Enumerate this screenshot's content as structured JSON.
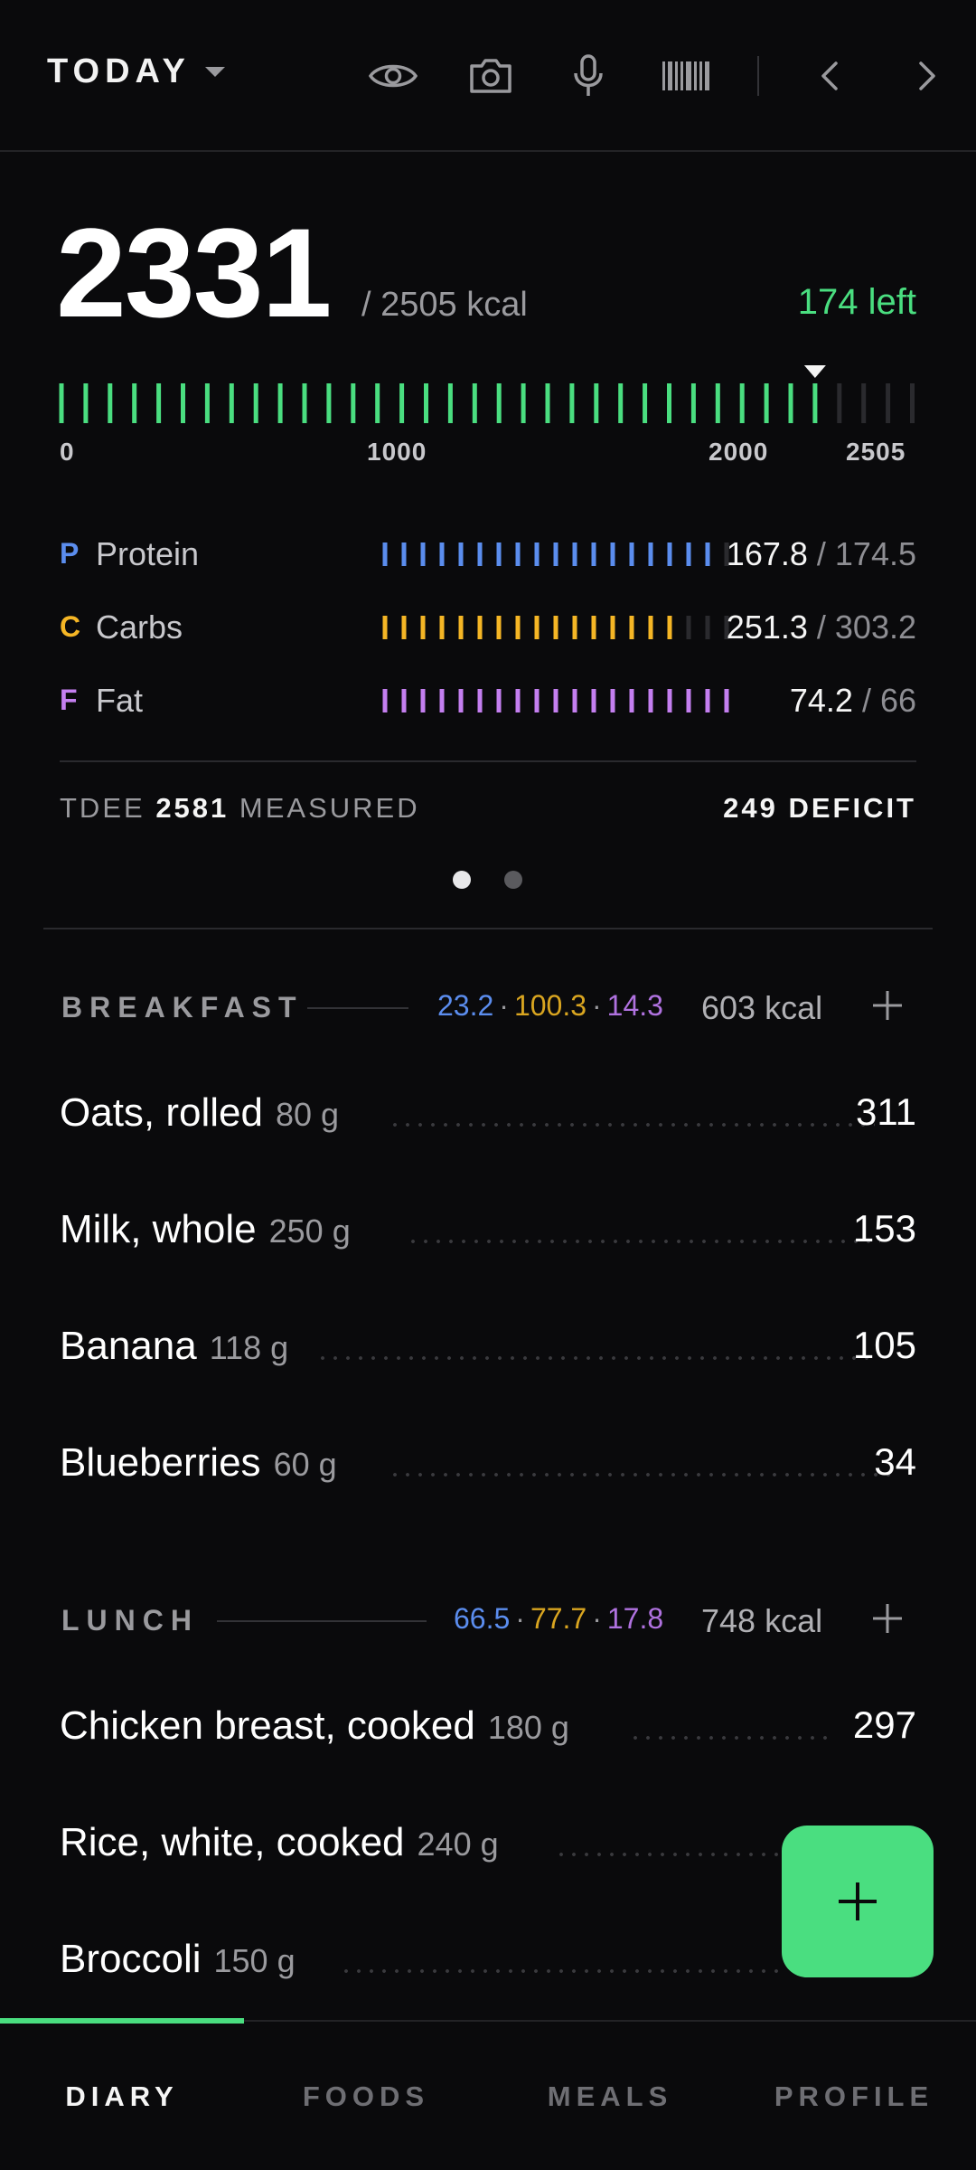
{
  "header": {
    "date_label": "TODAY",
    "icons": [
      "eye-icon",
      "camera-icon",
      "mic-icon",
      "barcode-icon",
      "chevron-left-icon",
      "chevron-right-icon"
    ]
  },
  "summary": {
    "consumed": "2331",
    "goal_text": "/ 2505 kcal",
    "left_text": "174 left",
    "consumed_value": 2331,
    "goal_value": 2505,
    "scale_labels": [
      "0",
      "1000",
      "2000",
      "2505"
    ]
  },
  "macros": [
    {
      "letter": "P",
      "name": "Protein",
      "value": "167.8",
      "goal": "174.5",
      "progress": 0.962,
      "color": "#5b8dee"
    },
    {
      "letter": "C",
      "name": "Carbs",
      "value": "251.3",
      "goal": "303.2",
      "progress": 0.829,
      "color": "#f5b625"
    },
    {
      "letter": "F",
      "name": "Fat",
      "value": "74.2",
      "goal": "66",
      "progress": 1.0,
      "color": "#c47ff0"
    }
  ],
  "tdee": {
    "label": "TDEE",
    "value": "2581",
    "status": "MEASURED",
    "deficit": "249 DEFICIT"
  },
  "pager": {
    "active": 0,
    "count": 2
  },
  "meals": [
    {
      "title": "BREAKFAST",
      "protein": "23.2",
      "carbs": "100.3",
      "fat": "14.3",
      "kcal": "603 kcal",
      "items": [
        {
          "name": "Oats, rolled",
          "qty": "80 g",
          "kcal": "311"
        },
        {
          "name": "Milk, whole",
          "qty": "250 g",
          "kcal": "153"
        },
        {
          "name": "Banana",
          "qty": "118 g",
          "kcal": "105"
        },
        {
          "name": "Blueberries",
          "qty": "60 g",
          "kcal": "34"
        }
      ]
    },
    {
      "title": "LUNCH",
      "protein": "66.5",
      "carbs": "77.7",
      "fat": "17.8",
      "kcal": "748 kcal",
      "items": [
        {
          "name": "Chicken breast, cooked",
          "qty": "180 g",
          "kcal": "297"
        },
        {
          "name": "Rice, white, cooked",
          "qty": "240 g",
          "kcal": ""
        },
        {
          "name": "Broccoli",
          "qty": "150 g",
          "kcal": ""
        }
      ]
    }
  ],
  "fab_icon": "plus-icon",
  "nav": {
    "active": 0,
    "tabs": [
      {
        "label": "DIARY"
      },
      {
        "label": "FOODS"
      },
      {
        "label": "MEALS"
      },
      {
        "label": "PROFILE"
      }
    ]
  },
  "colors": {
    "accent": "#4ade80",
    "protein": "#5b8dee",
    "carbs": "#f5b625",
    "fat": "#c47ff0"
  }
}
